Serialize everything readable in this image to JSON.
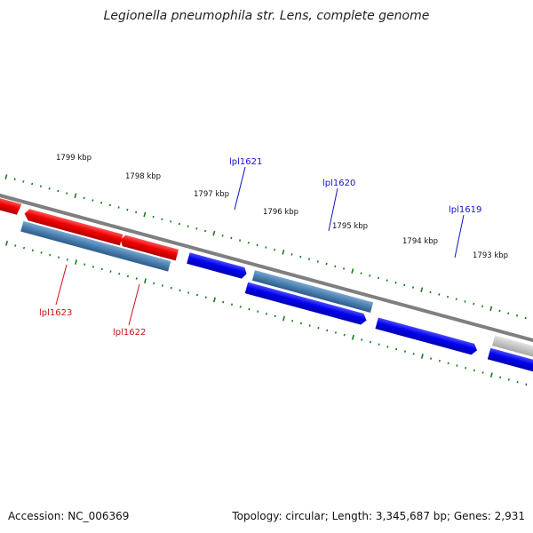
{
  "title": "Legionella pneumophila str. Lens, complete genome",
  "accession": "Accession: NC_006369",
  "summary": "Topology: circular; Length: 3,345,687 bp; Genes: 2,931",
  "ticks": [
    {
      "label": "1799 kbp"
    },
    {
      "label": "1798 kbp"
    },
    {
      "label": "1797 kbp"
    },
    {
      "label": "1796 kbp"
    },
    {
      "label": "1795 kbp"
    },
    {
      "label": "1794 kbp"
    },
    {
      "label": "1793 kbp"
    }
  ],
  "gene_labels": [
    {
      "label": "lpl1621",
      "color": "#1414c8"
    },
    {
      "label": "lpl1620",
      "color": "#1414c8"
    },
    {
      "label": "lpl1619",
      "color": "#1414c8"
    },
    {
      "label": "lpl1623",
      "color": "#cc1111"
    },
    {
      "label": "lpl1622",
      "color": "#cc1111"
    }
  ],
  "colors": {
    "forward_cds": "#0000ee",
    "reverse_cds": "#ee0000",
    "gene": "#4a7fb0",
    "other": "#c8c8c8",
    "backbone": "#808080",
    "ticks": "#1a7a1a"
  }
}
